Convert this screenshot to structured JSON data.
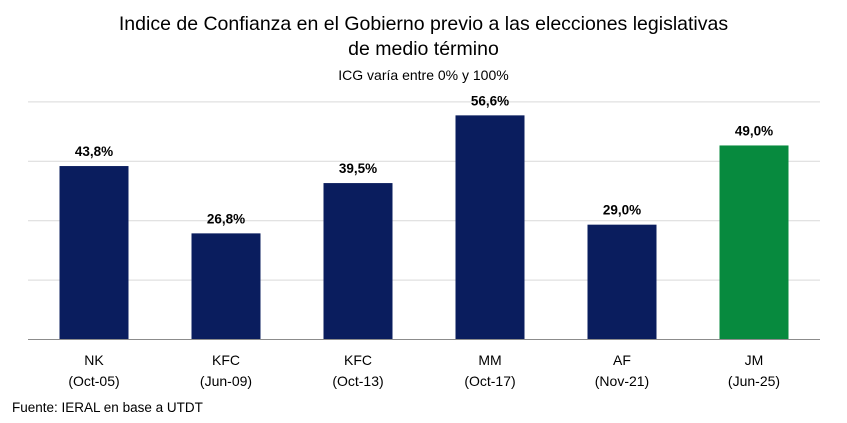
{
  "chart_data": {
    "type": "bar",
    "title_line1": "Indice de Confianza en el Gobierno previo a las elecciones legislativas",
    "title_line2": "de medio término",
    "subtitle": "ICG varía entre 0% y 100%",
    "categories": [
      {
        "name": "NK",
        "period": "(Oct-05)"
      },
      {
        "name": "KFC",
        "period": "(Jun-09)"
      },
      {
        "name": "KFC",
        "period": "(Oct-13)"
      },
      {
        "name": "MM",
        "period": "(Oct-17)"
      },
      {
        "name": "AF",
        "period": "(Nov-21)"
      },
      {
        "name": "JM",
        "period": "(Jun-25)"
      }
    ],
    "values": [
      43.8,
      26.8,
      39.5,
      56.6,
      29.0,
      49.0
    ],
    "value_labels": [
      "43,8%",
      "26,8%",
      "39,5%",
      "56,6%",
      "29,0%",
      "49,0%"
    ],
    "bar_colors": [
      "#0a1d5e",
      "#0a1d5e",
      "#0a1d5e",
      "#0a1d5e",
      "#0a1d5e",
      "#078a3e"
    ],
    "ylim": [
      0,
      60
    ],
    "grid": true,
    "xlabel": "",
    "ylabel": "",
    "source": "Fuente: IERAL en base a UTDT"
  }
}
